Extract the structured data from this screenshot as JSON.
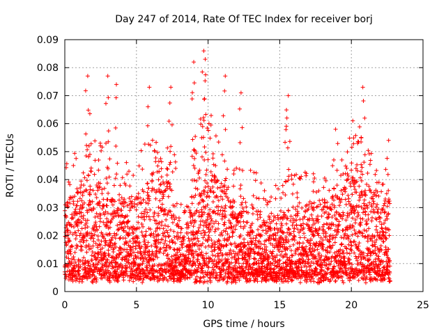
{
  "chart_data": {
    "type": "scatter",
    "title": "Day 247 of 2014, Rate Of TEC Index for receiver borj",
    "xlabel": "GPS time / hours",
    "ylabel": "ROTI / TECUs",
    "xlim": [
      0,
      25
    ],
    "ylim": [
      0,
      0.09
    ],
    "x_ticks": [
      0,
      5,
      10,
      15,
      20,
      25
    ],
    "x_tick_labels": [
      "0",
      "5",
      "10",
      "15",
      "20",
      "25"
    ],
    "y_ticks": [
      0,
      0.01,
      0.02,
      0.03,
      0.04,
      0.05,
      0.06,
      0.07,
      0.08,
      0.09
    ],
    "y_tick_labels": [
      "0",
      "0.01",
      "0.02",
      "0.03",
      "0.04",
      "0.05",
      "0.06",
      "0.07",
      "0.08",
      "0.09"
    ],
    "grid": true,
    "marker": "plus",
    "color": "#ff0000",
    "series": [
      {
        "name": "borj",
        "x_range": [
          0,
          22.7
        ],
        "typical_range": [
          0.005,
          0.03
        ],
        "notable_points": [
          {
            "x": 1.6,
            "y": 0.077
          },
          {
            "x": 3.0,
            "y": 0.077
          },
          {
            "x": 3.6,
            "y": 0.074
          },
          {
            "x": 5.9,
            "y": 0.073
          },
          {
            "x": 7.4,
            "y": 0.073
          },
          {
            "x": 9.0,
            "y": 0.082
          },
          {
            "x": 9.7,
            "y": 0.086
          },
          {
            "x": 9.8,
            "y": 0.083
          },
          {
            "x": 11.2,
            "y": 0.077
          },
          {
            "x": 12.3,
            "y": 0.071
          },
          {
            "x": 15.6,
            "y": 0.07
          },
          {
            "x": 15.5,
            "y": 0.062
          },
          {
            "x": 18.9,
            "y": 0.058
          },
          {
            "x": 20.8,
            "y": 0.073
          },
          {
            "x": 20.1,
            "y": 0.061
          },
          {
            "x": 22.6,
            "y": 0.054
          }
        ]
      }
    ]
  }
}
